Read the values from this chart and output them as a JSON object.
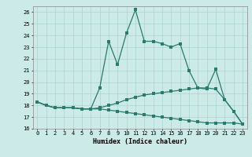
{
  "xlabel": "Humidex (Indice chaleur)",
  "xlim": [
    -0.5,
    23.5
  ],
  "ylim": [
    16,
    26.5
  ],
  "yticks": [
    16,
    17,
    18,
    19,
    20,
    21,
    22,
    23,
    24,
    25,
    26
  ],
  "xticks": [
    0,
    1,
    2,
    3,
    4,
    5,
    6,
    7,
    8,
    9,
    10,
    11,
    12,
    13,
    14,
    15,
    16,
    17,
    18,
    19,
    20,
    21,
    22,
    23
  ],
  "bg_color": "#cceae7",
  "grid_color": "#aad4d0",
  "line_color": "#2a7a6e",
  "series1": [
    18.3,
    18.0,
    17.8,
    17.8,
    17.8,
    17.7,
    17.7,
    19.5,
    23.5,
    21.5,
    24.2,
    26.2,
    23.5,
    23.5,
    23.3,
    23.0,
    23.3,
    21.0,
    19.5,
    19.4,
    21.1,
    18.5,
    17.5,
    16.4
  ],
  "series2": [
    18.3,
    18.0,
    17.8,
    17.8,
    17.8,
    17.7,
    17.7,
    17.8,
    18.0,
    18.2,
    18.5,
    18.7,
    18.9,
    19.0,
    19.1,
    19.2,
    19.3,
    19.4,
    19.5,
    19.5,
    19.4,
    18.5,
    17.5,
    16.4
  ],
  "series3": [
    18.3,
    18.0,
    17.8,
    17.8,
    17.8,
    17.7,
    17.7,
    17.7,
    17.6,
    17.5,
    17.4,
    17.3,
    17.2,
    17.1,
    17.0,
    16.9,
    16.8,
    16.7,
    16.6,
    16.5,
    16.5,
    16.5,
    16.5,
    16.4
  ]
}
